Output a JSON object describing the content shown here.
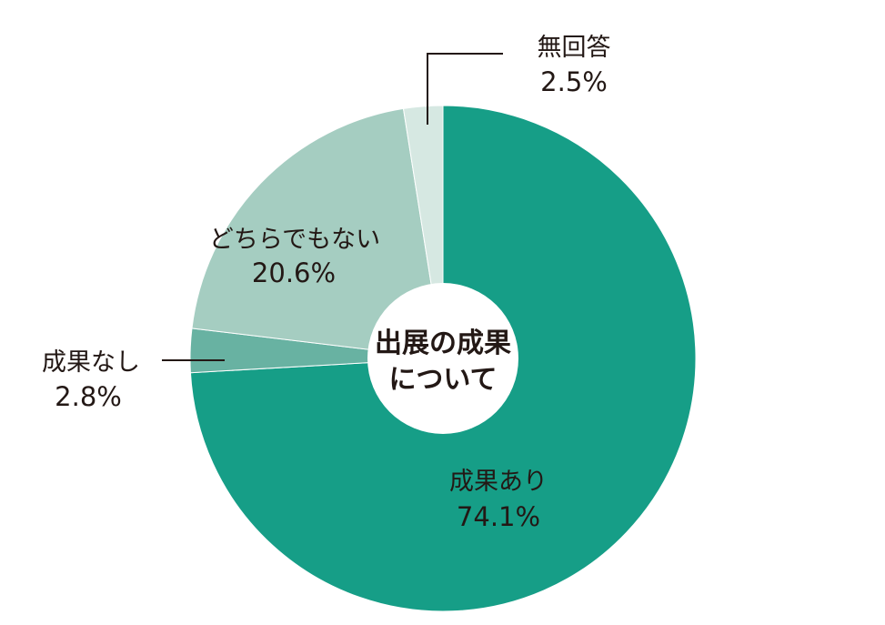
{
  "chart_data": {
    "type": "pie",
    "center_label": [
      "出展の成果",
      "について"
    ],
    "slices": [
      {
        "label": "成果あり",
        "value": 74.1,
        "display": "74.1%",
        "color": "#169e87"
      },
      {
        "label": "成果なし",
        "value": 2.8,
        "display": "2.8%",
        "color": "#68b2a2"
      },
      {
        "label": "どちらでもない",
        "value": 20.6,
        "display": "20.6%",
        "color": "#a5cdc1"
      },
      {
        "label": "無回答",
        "value": 2.5,
        "display": "2.5%",
        "color": "#d6e8e2"
      }
    ],
    "legend": "none"
  }
}
